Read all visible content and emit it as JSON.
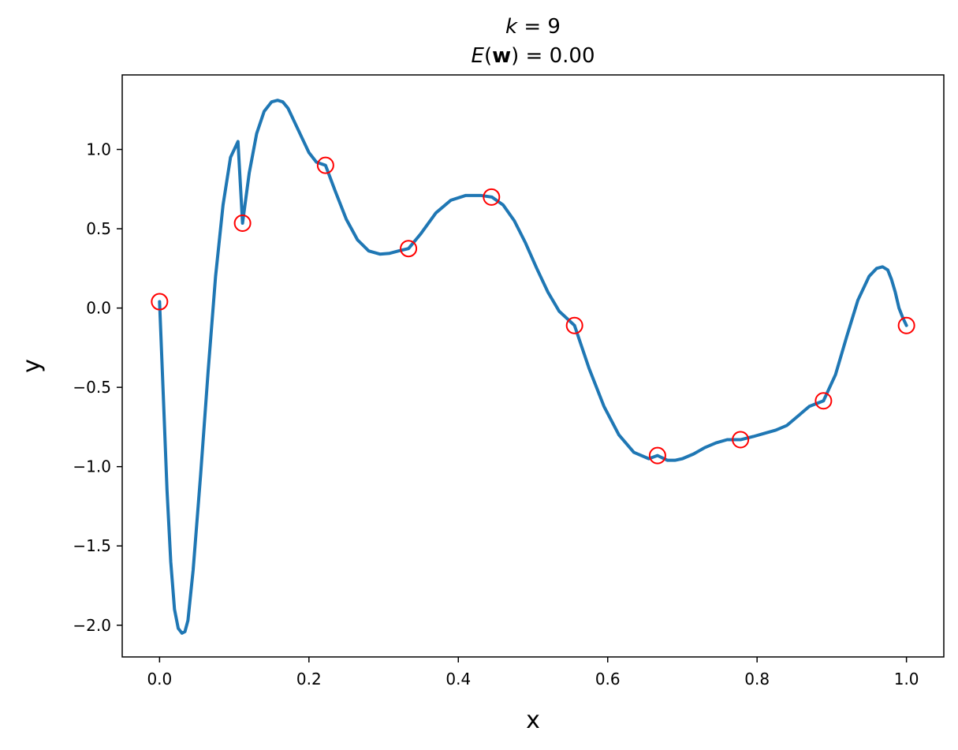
{
  "chart_data": {
    "type": "line",
    "title_line1": {
      "var": "k",
      "rest": " = 9"
    },
    "title_line2": {
      "func": "E",
      "open": "(",
      "bold": "w",
      "close": ")",
      "rest": " = 0.00"
    },
    "xlabel": "x",
    "ylabel": "y",
    "xlim": [
      -0.05,
      1.05
    ],
    "ylim": [
      -2.2,
      1.47
    ],
    "xticks": [
      0.0,
      0.2,
      0.4,
      0.6,
      0.8,
      1.0
    ],
    "xtick_labels": [
      "0.0",
      "0.2",
      "0.4",
      "0.6",
      "0.8",
      "1.0"
    ],
    "yticks": [
      1.0,
      0.5,
      0.0,
      -0.5,
      -1.0,
      -1.5,
      -2.0
    ],
    "ytick_labels": [
      "1.0",
      "0.5",
      "0.0",
      "−0.5",
      "−1.0",
      "−1.5",
      "−2.0"
    ],
    "curve_color": "#1f77b4",
    "marker_color": "#ff0000",
    "points": {
      "x": [
        0.0,
        0.1111,
        0.2222,
        0.3333,
        0.4444,
        0.5556,
        0.6667,
        0.7778,
        0.8889,
        1.0
      ],
      "y": [
        0.04,
        0.535,
        0.9,
        0.375,
        0.7,
        -0.11,
        -0.93,
        -0.83,
        -0.585,
        -0.11
      ]
    },
    "curve": {
      "x": [
        0.0,
        0.005,
        0.01,
        0.015,
        0.02,
        0.025,
        0.03,
        0.034,
        0.038,
        0.045,
        0.055,
        0.065,
        0.075,
        0.085,
        0.095,
        0.105,
        0.1111,
        0.12,
        0.13,
        0.14,
        0.15,
        0.158,
        0.165,
        0.172,
        0.18,
        0.19,
        0.2,
        0.21,
        0.2222,
        0.235,
        0.25,
        0.265,
        0.28,
        0.295,
        0.308,
        0.32,
        0.3333,
        0.35,
        0.37,
        0.39,
        0.41,
        0.43,
        0.445,
        0.46,
        0.475,
        0.49,
        0.505,
        0.52,
        0.535,
        0.5556,
        0.575,
        0.595,
        0.615,
        0.635,
        0.655,
        0.6667,
        0.68,
        0.69,
        0.7,
        0.715,
        0.73,
        0.745,
        0.76,
        0.7778,
        0.795,
        0.81,
        0.825,
        0.84,
        0.855,
        0.87,
        0.8889,
        0.905,
        0.92,
        0.935,
        0.95,
        0.96,
        0.968,
        0.975,
        0.98,
        0.985,
        0.99,
        0.995,
        1.0
      ],
      "y": [
        0.04,
        -0.55,
        -1.15,
        -1.6,
        -1.9,
        -2.02,
        -2.05,
        -2.04,
        -1.97,
        -1.65,
        -1.05,
        -0.4,
        0.2,
        0.65,
        0.95,
        1.05,
        0.535,
        0.85,
        1.1,
        1.24,
        1.3,
        1.31,
        1.3,
        1.26,
        1.18,
        1.08,
        0.98,
        0.92,
        0.9,
        0.74,
        0.56,
        0.43,
        0.36,
        0.34,
        0.345,
        0.36,
        0.375,
        0.47,
        0.6,
        0.68,
        0.71,
        0.71,
        0.7,
        0.65,
        0.55,
        0.41,
        0.25,
        0.1,
        -0.02,
        -0.11,
        -0.38,
        -0.62,
        -0.8,
        -0.91,
        -0.95,
        -0.93,
        -0.96,
        -0.96,
        -0.95,
        -0.92,
        -0.88,
        -0.85,
        -0.83,
        -0.83,
        -0.81,
        -0.79,
        -0.77,
        -0.74,
        -0.68,
        -0.62,
        -0.585,
        -0.42,
        -0.18,
        0.05,
        0.2,
        0.25,
        0.26,
        0.24,
        0.18,
        0.1,
        0.0,
        -0.06,
        -0.11
      ]
    }
  }
}
